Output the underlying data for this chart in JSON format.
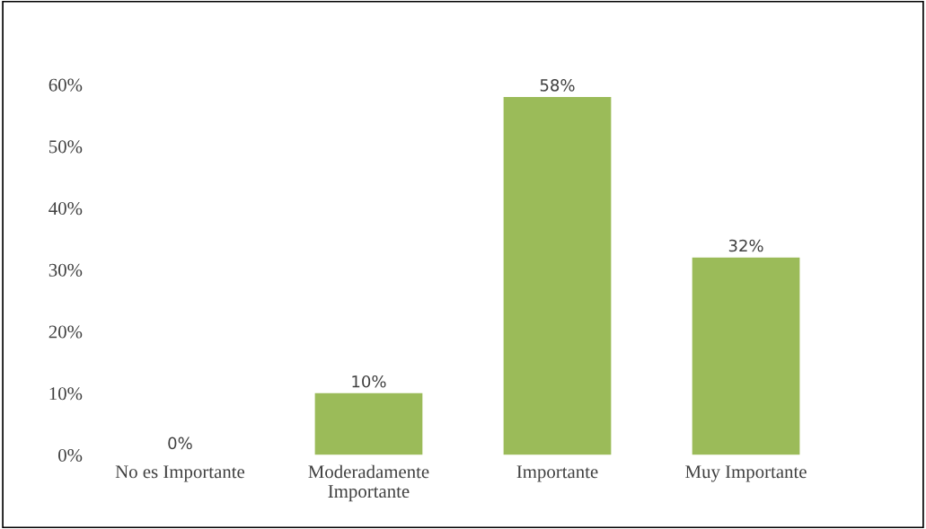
{
  "chart_data": {
    "type": "bar",
    "categories": [
      "No es Importante",
      "Moderadamente\nImportante",
      "Importante",
      "Muy Importante"
    ],
    "values": [
      0,
      10,
      58,
      32
    ],
    "value_labels": [
      "0%",
      "10%",
      "58%",
      "32%"
    ],
    "color": "#9bbb59",
    "ylim": [
      0,
      60
    ],
    "yticks": [
      {
        "value": 0,
        "label": "0%"
      },
      {
        "value": 10,
        "label": "10%"
      },
      {
        "value": 20,
        "label": "20%"
      },
      {
        "value": 30,
        "label": "30%"
      },
      {
        "value": 40,
        "label": "40%"
      },
      {
        "value": 50,
        "label": "50%"
      },
      {
        "value": 60,
        "label": "60%"
      }
    ],
    "grid": false,
    "legend": false
  }
}
